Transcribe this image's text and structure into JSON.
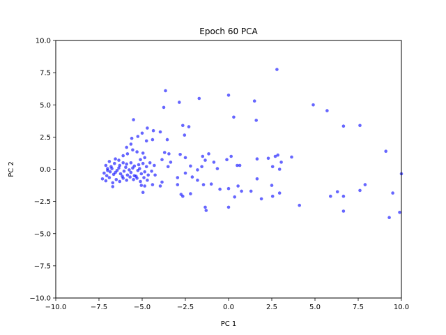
{
  "chart_data": {
    "type": "scatter",
    "title": "Epoch 60 PCA",
    "xlabel": "PC 1",
    "ylabel": "PC 2",
    "xlim": [
      -10,
      10
    ],
    "ylim": [
      -10,
      10
    ],
    "xticks": [
      -10,
      -7.5,
      -5,
      -2.5,
      0,
      2.5,
      5,
      7.5,
      10
    ],
    "yticks": [
      -10,
      -7.5,
      -5,
      -2.5,
      0,
      2.5,
      5,
      7.5,
      10
    ],
    "xtick_labels": [
      "−10.0",
      "−7.5",
      "−5.0",
      "−2.5",
      "0.0",
      "2.5",
      "5.0",
      "7.5",
      "10.0"
    ],
    "ytick_labels": [
      "−10.0",
      "−7.5",
      "−5.0",
      "−2.5",
      "0.0",
      "2.5",
      "5.0",
      "7.5",
      "10.0"
    ],
    "grid": false,
    "marker_color": "#0000ff",
    "marker_alpha": 0.6,
    "points": [
      [
        2.8,
        7.75
      ],
      [
        -3.65,
        6.1
      ],
      [
        0.0,
        5.75
      ],
      [
        1.5,
        5.3
      ],
      [
        -2.85,
        5.2
      ],
      [
        -1.7,
        5.5
      ],
      [
        -3.75,
        4.8
      ],
      [
        4.9,
        5.0
      ],
      [
        5.7,
        4.55
      ],
      [
        0.3,
        4.05
      ],
      [
        1.6,
        3.8
      ],
      [
        -5.5,
        3.85
      ],
      [
        6.65,
        3.35
      ],
      [
        7.6,
        3.4
      ],
      [
        -2.65,
        3.4
      ],
      [
        -2.3,
        3.3
      ],
      [
        -4.7,
        3.2
      ],
      [
        -4.35,
        3.0
      ],
      [
        -5.0,
        2.8
      ],
      [
        -3.95,
        2.9
      ],
      [
        -2.55,
        2.65
      ],
      [
        -5.25,
        2.55
      ],
      [
        -5.6,
        2.4
      ],
      [
        -4.75,
        2.2
      ],
      [
        -4.4,
        2.3
      ],
      [
        -3.55,
        2.3
      ],
      [
        -5.65,
        1.95
      ],
      [
        -5.9,
        1.7
      ],
      [
        -3.7,
        1.3
      ],
      [
        -3.45,
        1.2
      ],
      [
        -5.55,
        1.5
      ],
      [
        -5.3,
        1.35
      ],
      [
        -4.95,
        1.25
      ],
      [
        -5.85,
        1.2
      ],
      [
        -6.1,
        1.05
      ],
      [
        -6.55,
        0.8
      ],
      [
        -6.35,
        0.7
      ],
      [
        -5.1,
        0.75
      ],
      [
        -4.85,
        0.9
      ],
      [
        -3.85,
        0.75
      ],
      [
        -3.35,
        0.55
      ],
      [
        -3.5,
        0.2
      ],
      [
        -2.8,
        1.15
      ],
      [
        -2.5,
        0.9
      ],
      [
        -1.15,
        1.2
      ],
      [
        -1.5,
        1.0
      ],
      [
        -1.35,
        0.7
      ],
      [
        -1.55,
        0.2
      ],
      [
        -1.8,
        -0.05
      ],
      [
        -2.2,
        0.25
      ],
      [
        -2.5,
        -0.3
      ],
      [
        -6.9,
        0.6
      ],
      [
        -7.1,
        0.3
      ],
      [
        -7.0,
        0.05
      ],
      [
        -6.8,
        0.2
      ],
      [
        -6.6,
        0.45
      ],
      [
        -6.3,
        0.3
      ],
      [
        -6.1,
        0.5
      ],
      [
        -5.9,
        0.4
      ],
      [
        -5.65,
        0.5
      ],
      [
        -5.45,
        0.25
      ],
      [
        -5.2,
        0.35
      ],
      [
        -4.95,
        0.45
      ],
      [
        -4.75,
        0.2
      ],
      [
        -4.55,
        0.5
      ],
      [
        -7.2,
        -0.3
      ],
      [
        -7.05,
        -0.5
      ],
      [
        -6.85,
        -0.2
      ],
      [
        -6.65,
        -0.4
      ],
      [
        -6.45,
        -0.1
      ],
      [
        -6.25,
        -0.35
      ],
      [
        -6.05,
        -0.15
      ],
      [
        -5.85,
        -0.45
      ],
      [
        -5.65,
        -0.25
      ],
      [
        -5.45,
        -0.5
      ],
      [
        -5.25,
        -0.1
      ],
      [
        -5.05,
        -0.35
      ],
      [
        -4.85,
        -0.2
      ],
      [
        -4.65,
        -0.45
      ],
      [
        -7.3,
        -0.75
      ],
      [
        -7.1,
        -0.9
      ],
      [
        -6.9,
        -0.65
      ],
      [
        -6.7,
        -1.05
      ],
      [
        -6.5,
        -0.8
      ],
      [
        -6.3,
        -0.95
      ],
      [
        -6.1,
        -0.7
      ],
      [
        -5.9,
        -0.85
      ],
      [
        -5.7,
        -0.6
      ],
      [
        -5.5,
        -0.8
      ],
      [
        -5.3,
        -0.7
      ],
      [
        -5.1,
        -0.95
      ],
      [
        -4.9,
        -0.65
      ],
      [
        -4.7,
        -0.85
      ],
      [
        -7.0,
        -0.1
      ],
      [
        -6.75,
        0.05
      ],
      [
        -6.55,
        -0.25
      ],
      [
        -6.35,
        0.1
      ],
      [
        -6.15,
        -0.55
      ],
      [
        -5.95,
        0.15
      ],
      [
        -5.75,
        -0.05
      ],
      [
        -5.55,
        0.1
      ],
      [
        -5.35,
        -0.55
      ],
      [
        -5.15,
        0.05
      ],
      [
        -4.45,
        -0.15
      ],
      [
        -4.3,
        0.3
      ],
      [
        -4.25,
        -0.45
      ],
      [
        -6.7,
        -1.35
      ],
      [
        -5.05,
        -1.25
      ],
      [
        -4.85,
        -1.3
      ],
      [
        -4.4,
        -1.2
      ],
      [
        -4.95,
        -1.8
      ],
      [
        -3.95,
        -1.3
      ],
      [
        -0.85,
        0.55
      ],
      [
        -0.65,
        0.05
      ],
      [
        -0.1,
        0.75
      ],
      [
        0.15,
        1.0
      ],
      [
        0.5,
        0.3
      ],
      [
        0.65,
        0.3
      ],
      [
        1.65,
        0.8
      ],
      [
        2.3,
        0.85
      ],
      [
        2.7,
        1.0
      ],
      [
        2.85,
        1.1
      ],
      [
        3.05,
        0.55
      ],
      [
        3.65,
        0.95
      ],
      [
        2.55,
        0.2
      ],
      [
        2.95,
        0.0
      ],
      [
        2.5,
        -1.25
      ],
      [
        1.65,
        -0.75
      ],
      [
        2.55,
        -2.1
      ],
      [
        2.95,
        -1.85
      ],
      [
        1.9,
        -2.3
      ],
      [
        4.1,
        -2.8
      ],
      [
        6.3,
        -1.75
      ],
      [
        5.9,
        -2.1
      ],
      [
        6.65,
        -2.1
      ],
      [
        6.65,
        -3.25
      ],
      [
        7.6,
        -1.65
      ],
      [
        7.9,
        -1.2
      ],
      [
        9.1,
        1.4
      ],
      [
        9.5,
        -1.85
      ],
      [
        9.3,
        -3.75
      ],
      [
        9.9,
        -3.35
      ],
      [
        10.0,
        -0.35
      ],
      [
        0.55,
        -1.3
      ],
      [
        0.75,
        -1.7
      ],
      [
        1.3,
        -1.7
      ],
      [
        0.35,
        -2.15
      ],
      [
        0.0,
        -1.5
      ],
      [
        -0.5,
        -1.55
      ],
      [
        -1.0,
        -1.15
      ],
      [
        -0.0,
        -2.95
      ],
      [
        -1.3,
        -3.2
      ],
      [
        -1.35,
        -2.95
      ],
      [
        -2.2,
        -1.9
      ],
      [
        -2.65,
        -2.1
      ],
      [
        -2.75,
        -1.95
      ],
      [
        -2.95,
        -1.2
      ],
      [
        -2.95,
        -0.65
      ],
      [
        -2.1,
        -0.6
      ],
      [
        -1.8,
        -0.85
      ],
      [
        -1.45,
        -1.2
      ],
      [
        -3.85,
        -1.0
      ]
    ]
  }
}
